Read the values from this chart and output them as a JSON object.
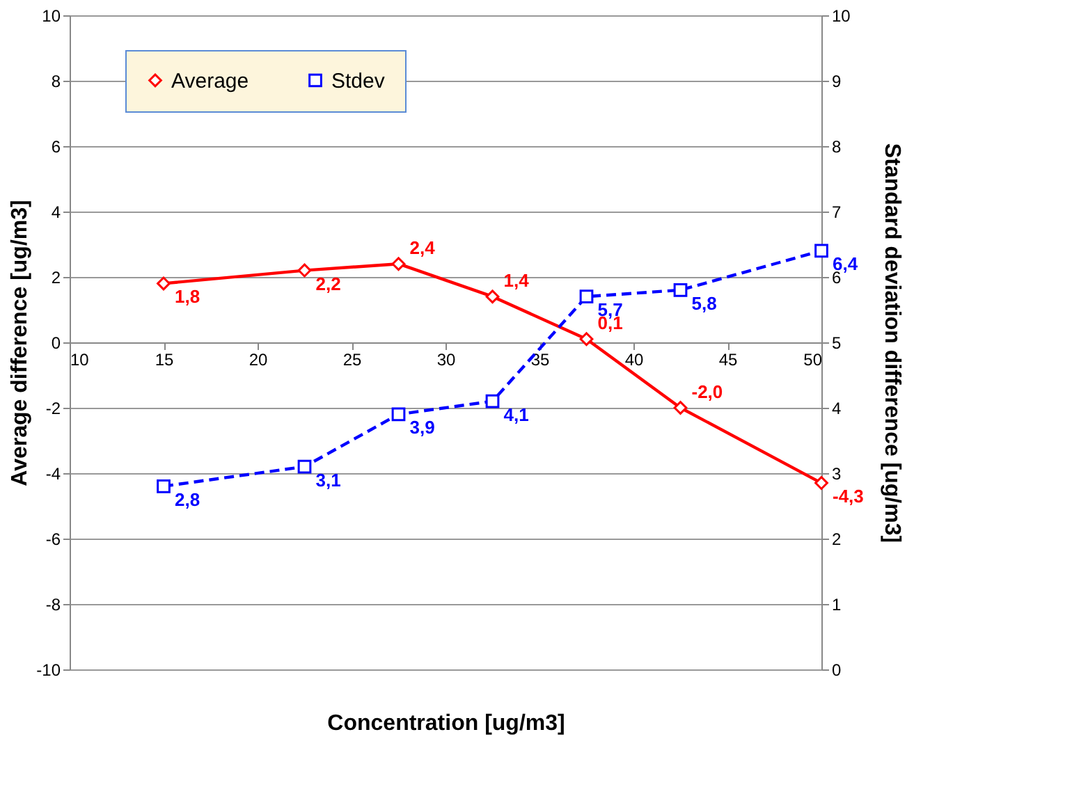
{
  "chart_data": {
    "type": "line",
    "xlabel": "Concentration  [ug/m3]",
    "ylabel": "Average difference [ug/m3]",
    "y2label": "Standard deviation difference [ug/m3]",
    "x": [
      15,
      22.5,
      27.5,
      32.5,
      37.5,
      42.5,
      50
    ],
    "xlim": [
      10,
      50
    ],
    "xticks": [
      10,
      15,
      20,
      25,
      30,
      35,
      40,
      45,
      50
    ],
    "ylim": [
      -10,
      10
    ],
    "yticks": [
      -10,
      -8,
      -6,
      -4,
      -2,
      0,
      2,
      4,
      6,
      8,
      10
    ],
    "y2lim": [
      0,
      10
    ],
    "y2ticks": [
      0,
      1,
      2,
      3,
      4,
      5,
      6,
      7,
      8,
      9,
      10
    ],
    "grid": "y",
    "legend": "top left",
    "series": [
      {
        "name": "Average",
        "color": "#ff0000",
        "marker": "diamond",
        "line_style": "solid",
        "values": [
          1.8,
          2.2,
          2.4,
          1.4,
          0.1,
          -2.0,
          -4.3
        ],
        "value_labels": [
          "1,8",
          "2,2",
          "2,4",
          "1,4",
          "0,1",
          "-2,0",
          "-4,3"
        ]
      },
      {
        "name": "Stdev",
        "color": "#0000ff",
        "marker": "square",
        "line_style": "dashed",
        "axis": "y2",
        "values": [
          2.8,
          3.1,
          3.9,
          4.1,
          5.7,
          5.8,
          6.4
        ],
        "value_labels": [
          "2,8",
          "3,1",
          "3,9",
          "4,1",
          "5,7",
          "5,8",
          "6,4"
        ]
      }
    ]
  }
}
